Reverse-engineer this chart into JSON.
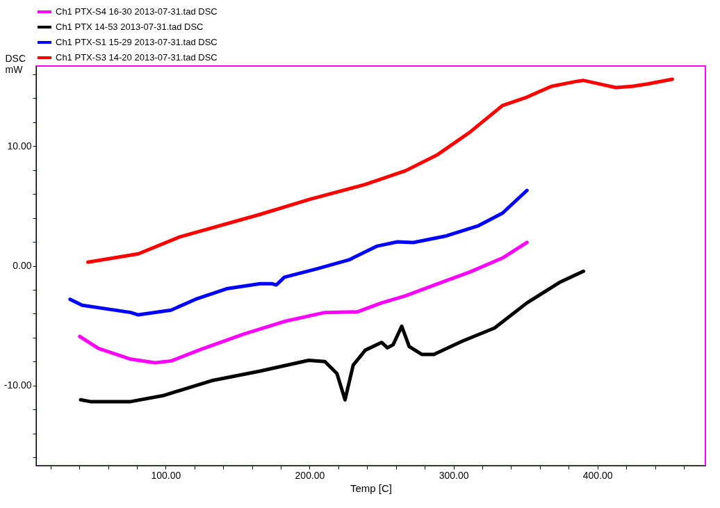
{
  "chart_data": {
    "type": "line",
    "xlabel": "Temp  [C]",
    "ylabel": "DSC mW",
    "xlim": [
      10,
      475
    ],
    "ylim": [
      -16.7,
      16.7
    ],
    "xticks": [
      {
        "value": 20,
        "label": null
      },
      {
        "value": 40,
        "label": null
      },
      {
        "value": 60,
        "label": null
      },
      {
        "value": 80,
        "label": null
      },
      {
        "value": 100,
        "label": "100.00"
      },
      {
        "value": 120,
        "label": null
      },
      {
        "value": 140,
        "label": null
      },
      {
        "value": 160,
        "label": null
      },
      {
        "value": 180,
        "label": null
      },
      {
        "value": 200,
        "label": "200.00"
      },
      {
        "value": 220,
        "label": null
      },
      {
        "value": 240,
        "label": null
      },
      {
        "value": 260,
        "label": null
      },
      {
        "value": 280,
        "label": null
      },
      {
        "value": 300,
        "label": "300.00"
      },
      {
        "value": 320,
        "label": null
      },
      {
        "value": 340,
        "label": null
      },
      {
        "value": 360,
        "label": null
      },
      {
        "value": 380,
        "label": null
      },
      {
        "value": 400,
        "label": "400.00"
      },
      {
        "value": 420,
        "label": null
      },
      {
        "value": 440,
        "label": null
      },
      {
        "value": 460,
        "label": null
      }
    ],
    "yticks": [
      {
        "value": -16,
        "label": null
      },
      {
        "value": -14,
        "label": null
      },
      {
        "value": -12,
        "label": null
      },
      {
        "value": -10,
        "label": "-10.00"
      },
      {
        "value": -8,
        "label": null
      },
      {
        "value": -6,
        "label": null
      },
      {
        "value": -4,
        "label": null
      },
      {
        "value": -2,
        "label": null
      },
      {
        "value": 0,
        "label": "0.00"
      },
      {
        "value": 2,
        "label": null
      },
      {
        "value": 4,
        "label": null
      },
      {
        "value": 6,
        "label": null
      },
      {
        "value": 8,
        "label": null
      },
      {
        "value": 10,
        "label": "10.00"
      },
      {
        "value": 12,
        "label": null
      },
      {
        "value": 14,
        "label": null
      },
      {
        "value": 16,
        "label": null
      }
    ],
    "grid": false,
    "legend": "top",
    "marker": "none",
    "line_style": "solid",
    "series": [
      {
        "name": "Ch1 PTX-S4 16-30 2013-07-31.tad DSC",
        "color": "#ff00ff",
        "x": [
          40.3,
          53.3,
          75.7,
          92.6,
          103.8,
          126.3,
          154.4,
          182.5,
          210.6,
          233,
          250,
          266.7,
          289,
          311.7,
          334,
          351
        ],
        "values": [
          -5.9,
          -6.9,
          -7.8,
          -8.1,
          -7.95,
          -6.9,
          -5.7,
          -4.65,
          -3.9,
          -3.85,
          -3.1,
          -2.5,
          -1.5,
          -0.5,
          0.65,
          1.95
        ]
      },
      {
        "name": "Ch1 PTX 14-53 2013-07-31.tad    DSC",
        "color": "#000000",
        "x": [
          40.9,
          47.6,
          75.7,
          98.2,
          131.9,
          165.6,
          199.3,
          210.6,
          219,
          224.6,
          230.3,
          238.7,
          250,
          254,
          258,
          264,
          269.2,
          277.9,
          286.4,
          306,
          328.5,
          351,
          373.5,
          390.3
        ],
        "values": [
          -11.2,
          -11.35,
          -11.35,
          -10.85,
          -9.6,
          -8.8,
          -7.9,
          -8.0,
          -9.0,
          -11.2,
          -8.3,
          -7.05,
          -6.4,
          -6.85,
          -6.6,
          -5.05,
          -6.75,
          -7.4,
          -7.4,
          -6.3,
          -5.2,
          -3.1,
          -1.4,
          -0.45
        ]
      },
      {
        "name": "Ch1 PTX-S1 15-29 2013-07-31.tad DSC",
        "color": "#0000ff",
        "x": [
          33.6,
          42,
          75.7,
          81,
          103.8,
          120.7,
          143,
          165.6,
          174,
          176.9,
          182.5,
          205,
          227.4,
          247,
          261,
          272,
          295,
          317.3,
          334,
          351
        ],
        "values": [
          -2.8,
          -3.3,
          -3.9,
          -4.1,
          -3.7,
          -2.8,
          -1.9,
          -1.5,
          -1.5,
          -1.6,
          -0.95,
          -0.25,
          0.5,
          1.65,
          2.0,
          1.95,
          2.5,
          3.35,
          4.4,
          6.3
        ]
      },
      {
        "name": "Ch1 PTX-S3 14-20 2013-07-31.tad DSC",
        "color": "#ff0000",
        "x": [
          46,
          81,
          109.4,
          165.6,
          200,
          238.7,
          266.7,
          289,
          311.7,
          334,
          351,
          368,
          384.7,
          390,
          401.6,
          412.8,
          424,
          435,
          452
        ],
        "values": [
          0.3,
          1.0,
          2.4,
          4.3,
          5.55,
          6.8,
          7.95,
          9.3,
          11.2,
          13.4,
          14.1,
          15.0,
          15.4,
          15.5,
          15.2,
          14.9,
          15.0,
          15.2,
          15.6
        ]
      }
    ]
  }
}
